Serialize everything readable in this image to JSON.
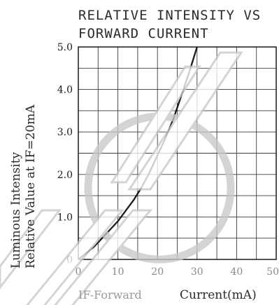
{
  "chart_data": {
    "type": "line",
    "title_line1": "RELATIVE INTENSITY VS",
    "title_line2": "FORWARD CURRENT",
    "xlabel_part1": "IF-Forward",
    "xlabel_part2": "Current(mA)",
    "ylabel_line1": "Luminous Intensity",
    "ylabel_line2": "Relative Value at IF=20mA",
    "xlim": [
      0,
      50
    ],
    "ylim": [
      0,
      5
    ],
    "x_ticks": [
      "0",
      "10",
      "20",
      "30",
      "40",
      "50"
    ],
    "y_ticks": [
      "0",
      "1.0",
      "2.0",
      "3.0",
      "4.0",
      "5.0"
    ],
    "grid": true,
    "series": [
      {
        "x": [
          0,
          2,
          4,
          6,
          8,
          10,
          12,
          14,
          16,
          18,
          20,
          22,
          24,
          26,
          28,
          30
        ],
        "y": [
          0,
          0.15,
          0.3,
          0.5,
          0.7,
          0.9,
          1.15,
          1.4,
          1.7,
          2.05,
          2.45,
          2.85,
          3.3,
          3.85,
          4.4,
          5.0
        ]
      }
    ]
  },
  "colors": {
    "line": "#1a1a1a",
    "grid": "#3a3a3a",
    "watermark": "#c8c8c8"
  }
}
